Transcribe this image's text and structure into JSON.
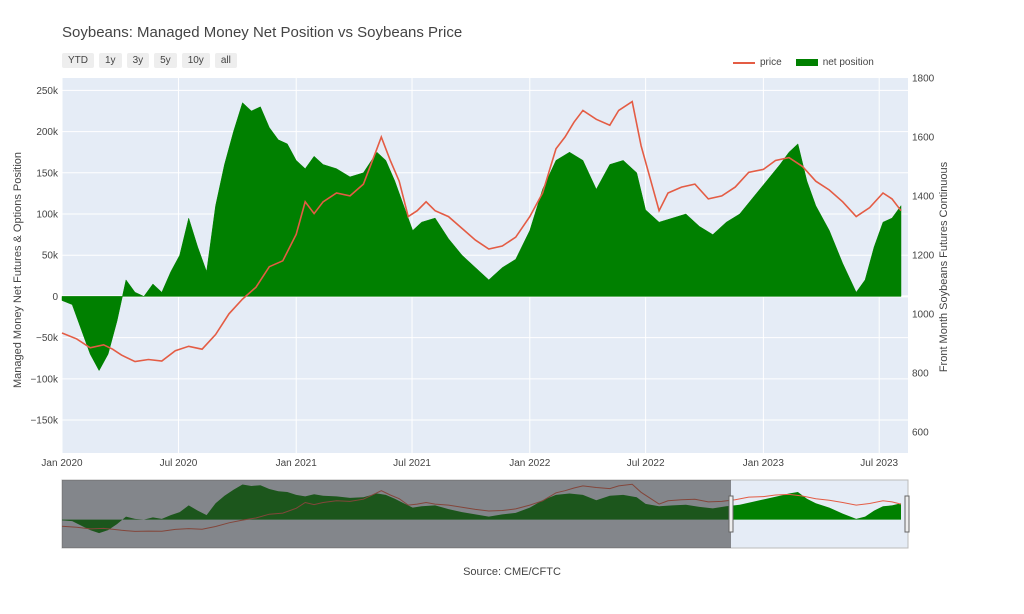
{
  "title": "Soybeans: Managed Money Net Position vs Soybeans Price",
  "range_buttons": [
    "YTD",
    "1y",
    "3y",
    "5y",
    "10y",
    "all"
  ],
  "source": "Source: CME/CFTC",
  "chart_data": {
    "type": "area",
    "ylabel": "Managed Money Net Futures & Options Position",
    "y2label": "Front Month Soybeans Futures Continuous",
    "ylim": [
      -190000,
      265000
    ],
    "y2lim": [
      528,
      1800
    ],
    "yticks": [
      250000,
      200000,
      150000,
      100000,
      50000,
      0,
      -50000,
      -100000,
      -150000
    ],
    "ytick_labels": [
      "250k",
      "200k",
      "150k",
      "100k",
      "50k",
      "0",
      "−50k",
      "−100k",
      "−150k"
    ],
    "y2ticks": [
      1800,
      1600,
      1400,
      1200,
      1000,
      800,
      600
    ],
    "xlim": [
      "2020-01-01",
      "2023-08-15"
    ],
    "xticks": [
      "2020-01-01",
      "2020-07-01",
      "2021-01-01",
      "2021-07-01",
      "2022-01-01",
      "2022-07-01",
      "2023-01-01",
      "2023-07-01"
    ],
    "xtick_labels": [
      "Jan 2020",
      "Jul 2020",
      "Jan 2021",
      "Jul 2021",
      "Jan 2022",
      "Jul 2022",
      "Jan 2023",
      "Jul 2023"
    ],
    "legend_position": "top-right",
    "grid": true,
    "rangeslider": true,
    "colors": {
      "price": "#e45c44",
      "net_position": "#008000",
      "plot_bg": "#e5ecf6"
    },
    "series": [
      {
        "name": "price",
        "axis": "right",
        "points": [
          [
            "2020-01-01",
            935
          ],
          [
            "2020-01-24",
            915
          ],
          [
            "2020-02-14",
            885
          ],
          [
            "2020-03-06",
            895
          ],
          [
            "2020-03-20",
            880
          ],
          [
            "2020-04-03",
            860
          ],
          [
            "2020-04-24",
            838
          ],
          [
            "2020-05-15",
            845
          ],
          [
            "2020-06-05",
            840
          ],
          [
            "2020-06-26",
            875
          ],
          [
            "2020-07-17",
            890
          ],
          [
            "2020-08-07",
            880
          ],
          [
            "2020-08-28",
            930
          ],
          [
            "2020-09-18",
            1000
          ],
          [
            "2020-10-09",
            1050
          ],
          [
            "2020-10-30",
            1090
          ],
          [
            "2020-11-20",
            1160
          ],
          [
            "2020-12-11",
            1180
          ],
          [
            "2021-01-01",
            1270
          ],
          [
            "2021-01-15",
            1380
          ],
          [
            "2021-01-29",
            1340
          ],
          [
            "2021-02-12",
            1380
          ],
          [
            "2021-03-05",
            1410
          ],
          [
            "2021-03-26",
            1400
          ],
          [
            "2021-04-16",
            1440
          ],
          [
            "2021-05-07",
            1560
          ],
          [
            "2021-05-14",
            1600
          ],
          [
            "2021-05-28",
            1520
          ],
          [
            "2021-06-11",
            1450
          ],
          [
            "2021-06-25",
            1330
          ],
          [
            "2021-07-09",
            1350
          ],
          [
            "2021-07-23",
            1380
          ],
          [
            "2021-08-06",
            1350
          ],
          [
            "2021-08-27",
            1330
          ],
          [
            "2021-09-17",
            1290
          ],
          [
            "2021-10-08",
            1250
          ],
          [
            "2021-10-29",
            1220
          ],
          [
            "2021-11-19",
            1230
          ],
          [
            "2021-12-10",
            1260
          ],
          [
            "2022-01-01",
            1330
          ],
          [
            "2022-01-21",
            1410
          ],
          [
            "2022-02-11",
            1560
          ],
          [
            "2022-02-25",
            1600
          ],
          [
            "2022-03-11",
            1650
          ],
          [
            "2022-03-25",
            1690
          ],
          [
            "2022-04-15",
            1660
          ],
          [
            "2022-05-06",
            1640
          ],
          [
            "2022-05-20",
            1690
          ],
          [
            "2022-06-10",
            1720
          ],
          [
            "2022-06-24",
            1570
          ],
          [
            "2022-07-08",
            1460
          ],
          [
            "2022-07-22",
            1350
          ],
          [
            "2022-08-05",
            1410
          ],
          [
            "2022-08-26",
            1430
          ],
          [
            "2022-09-16",
            1440
          ],
          [
            "2022-10-07",
            1390
          ],
          [
            "2022-10-28",
            1400
          ],
          [
            "2022-11-18",
            1430
          ],
          [
            "2022-12-09",
            1480
          ],
          [
            "2023-01-01",
            1490
          ],
          [
            "2023-01-20",
            1520
          ],
          [
            "2023-02-10",
            1530
          ],
          [
            "2023-03-03",
            1500
          ],
          [
            "2023-03-24",
            1450
          ],
          [
            "2023-04-14",
            1420
          ],
          [
            "2023-05-05",
            1380
          ],
          [
            "2023-05-26",
            1330
          ],
          [
            "2023-06-16",
            1360
          ],
          [
            "2023-07-07",
            1410
          ],
          [
            "2023-07-21",
            1390
          ],
          [
            "2023-08-04",
            1350
          ]
        ]
      },
      {
        "name": "net position",
        "axis": "left",
        "points": [
          [
            "2020-01-01",
            -5000
          ],
          [
            "2020-01-17",
            -10000
          ],
          [
            "2020-01-31",
            -40000
          ],
          [
            "2020-02-14",
            -70000
          ],
          [
            "2020-02-28",
            -90000
          ],
          [
            "2020-03-13",
            -70000
          ],
          [
            "2020-03-27",
            -30000
          ],
          [
            "2020-04-10",
            20000
          ],
          [
            "2020-04-24",
            5000
          ],
          [
            "2020-05-08",
            0
          ],
          [
            "2020-05-22",
            15000
          ],
          [
            "2020-06-05",
            5000
          ],
          [
            "2020-06-19",
            30000
          ],
          [
            "2020-07-03",
            50000
          ],
          [
            "2020-07-17",
            95000
          ],
          [
            "2020-07-31",
            60000
          ],
          [
            "2020-08-14",
            30000
          ],
          [
            "2020-08-28",
            110000
          ],
          [
            "2020-09-11",
            160000
          ],
          [
            "2020-09-25",
            200000
          ],
          [
            "2020-10-09",
            235000
          ],
          [
            "2020-10-23",
            225000
          ],
          [
            "2020-11-06",
            230000
          ],
          [
            "2020-11-20",
            205000
          ],
          [
            "2020-12-04",
            190000
          ],
          [
            "2020-12-18",
            185000
          ],
          [
            "2021-01-01",
            165000
          ],
          [
            "2021-01-15",
            155000
          ],
          [
            "2021-01-29",
            170000
          ],
          [
            "2021-02-12",
            160000
          ],
          [
            "2021-03-05",
            155000
          ],
          [
            "2021-03-26",
            145000
          ],
          [
            "2021-04-16",
            150000
          ],
          [
            "2021-05-07",
            175000
          ],
          [
            "2021-05-21",
            165000
          ],
          [
            "2021-06-04",
            140000
          ],
          [
            "2021-06-18",
            110000
          ],
          [
            "2021-07-02",
            80000
          ],
          [
            "2021-07-16",
            90000
          ],
          [
            "2021-08-06",
            95000
          ],
          [
            "2021-08-27",
            70000
          ],
          [
            "2021-09-17",
            50000
          ],
          [
            "2021-10-08",
            35000
          ],
          [
            "2021-10-29",
            20000
          ],
          [
            "2021-11-19",
            35000
          ],
          [
            "2021-12-10",
            45000
          ],
          [
            "2022-01-01",
            80000
          ],
          [
            "2022-01-21",
            130000
          ],
          [
            "2022-02-11",
            165000
          ],
          [
            "2022-03-04",
            175000
          ],
          [
            "2022-03-25",
            165000
          ],
          [
            "2022-04-15",
            130000
          ],
          [
            "2022-05-06",
            160000
          ],
          [
            "2022-05-27",
            165000
          ],
          [
            "2022-06-17",
            150000
          ],
          [
            "2022-07-01",
            105000
          ],
          [
            "2022-07-22",
            90000
          ],
          [
            "2022-08-12",
            95000
          ],
          [
            "2022-09-02",
            100000
          ],
          [
            "2022-09-23",
            85000
          ],
          [
            "2022-10-14",
            75000
          ],
          [
            "2022-11-04",
            90000
          ],
          [
            "2022-11-25",
            100000
          ],
          [
            "2022-12-16",
            120000
          ],
          [
            "2023-01-06",
            140000
          ],
          [
            "2023-01-27",
            160000
          ],
          [
            "2023-02-10",
            175000
          ],
          [
            "2023-02-24",
            185000
          ],
          [
            "2023-03-10",
            140000
          ],
          [
            "2023-03-24",
            110000
          ],
          [
            "2023-04-14",
            80000
          ],
          [
            "2023-05-05",
            40000
          ],
          [
            "2023-05-26",
            5000
          ],
          [
            "2023-06-09",
            20000
          ],
          [
            "2023-06-23",
            60000
          ],
          [
            "2023-07-07",
            90000
          ],
          [
            "2023-07-21",
            95000
          ],
          [
            "2023-08-04",
            110000
          ]
        ]
      }
    ]
  }
}
